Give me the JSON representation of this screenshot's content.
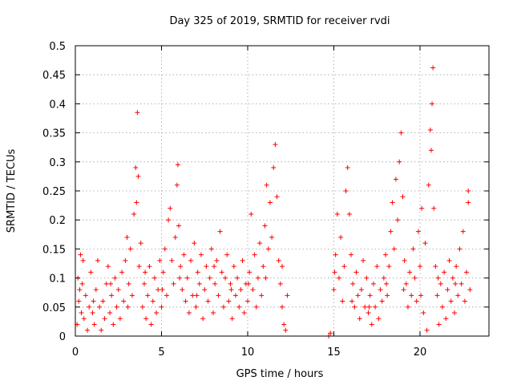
{
  "chart_data": {
    "type": "scatter",
    "title": "Day 325 of 2019, SRMTID for receiver rvdi",
    "xlabel": "GPS time / hours",
    "ylabel": "SRMTID / TECUs",
    "xlim": [
      0,
      24
    ],
    "ylim": [
      0,
      0.5
    ],
    "xticks": [
      0,
      5,
      10,
      15,
      20
    ],
    "xtick_labels": [
      "0",
      "5",
      "10",
      "15",
      "20"
    ],
    "yticks": [
      0,
      0.05,
      0.1,
      0.15,
      0.2,
      0.25,
      0.3,
      0.35,
      0.4,
      0.45,
      0.5
    ],
    "ytick_labels": [
      "0",
      "0.05",
      "0.1",
      "0.15",
      "0.2",
      "0.25",
      "0.3",
      "0.35",
      "0.4",
      "0.45",
      "0.5"
    ],
    "grid": true,
    "marker": "+",
    "colors": {
      "series": "#ff0000",
      "grid": "#a0a0a0",
      "axis": "#000000"
    },
    "series": [
      {
        "points": [
          [
            0.1,
            0.02
          ],
          [
            0.15,
            0.1
          ],
          [
            0.2,
            0.06
          ],
          [
            0.3,
            0.14
          ],
          [
            0.35,
            0.04
          ],
          [
            0.4,
            0.09
          ],
          [
            0.45,
            0.13
          ],
          [
            0.5,
            0.03
          ],
          [
            0.6,
            0.07
          ],
          [
            0.7,
            0.01
          ],
          [
            0.8,
            0.05
          ],
          [
            0.9,
            0.11
          ],
          [
            1.0,
            0.04
          ],
          [
            1.1,
            0.02
          ],
          [
            1.2,
            0.08
          ],
          [
            1.3,
            0.13
          ],
          [
            1.4,
            0.05
          ],
          [
            1.5,
            0.01
          ],
          [
            1.6,
            0.06
          ],
          [
            1.7,
            0.03
          ],
          [
            1.8,
            0.09
          ],
          [
            1.9,
            0.12
          ],
          [
            2.0,
            0.04
          ],
          [
            2.1,
            0.07
          ],
          [
            2.2,
            0.02
          ],
          [
            2.3,
            0.1
          ],
          [
            2.4,
            0.05
          ],
          [
            2.5,
            0.08
          ],
          [
            2.6,
            0.03
          ],
          [
            2.7,
            0.11
          ],
          [
            2.8,
            0.06
          ],
          [
            2.9,
            0.13
          ],
          [
            3.0,
            0.17
          ],
          [
            3.1,
            0.09
          ],
          [
            3.2,
            0.15
          ],
          [
            3.3,
            0.07
          ],
          [
            3.4,
            0.21
          ],
          [
            3.5,
            0.29
          ],
          [
            3.55,
            0.23
          ],
          [
            3.6,
            0.385
          ],
          [
            3.65,
            0.275
          ],
          [
            3.7,
            0.12
          ],
          [
            3.8,
            0.16
          ],
          [
            3.9,
            0.05
          ],
          [
            4.0,
            0.09
          ],
          [
            4.1,
            0.03
          ],
          [
            4.2,
            0.07
          ],
          [
            4.3,
            0.12
          ],
          [
            4.4,
            0.02
          ],
          [
            4.5,
            0.06
          ],
          [
            4.6,
            0.1
          ],
          [
            4.7,
            0.04
          ],
          [
            4.8,
            0.08
          ],
          [
            4.9,
            0.13
          ],
          [
            5.0,
            0.05
          ],
          [
            5.1,
            0.11
          ],
          [
            5.2,
            0.15
          ],
          [
            5.3,
            0.07
          ],
          [
            5.4,
            0.2
          ],
          [
            5.5,
            0.22
          ],
          [
            5.6,
            0.13
          ],
          [
            5.7,
            0.09
          ],
          [
            5.8,
            0.17
          ],
          [
            5.9,
            0.26
          ],
          [
            5.95,
            0.295
          ],
          [
            6.0,
            0.19
          ],
          [
            6.1,
            0.12
          ],
          [
            6.2,
            0.08
          ],
          [
            6.3,
            0.14
          ],
          [
            6.4,
            0.06
          ],
          [
            6.5,
            0.1
          ],
          [
            6.6,
            0.04
          ],
          [
            6.7,
            0.13
          ],
          [
            6.8,
            0.07
          ],
          [
            6.9,
            0.16
          ],
          [
            7.0,
            0.05
          ],
          [
            7.1,
            0.11
          ],
          [
            7.2,
            0.09
          ],
          [
            7.3,
            0.14
          ],
          [
            7.4,
            0.03
          ],
          [
            7.5,
            0.08
          ],
          [
            7.6,
            0.12
          ],
          [
            7.7,
            0.06
          ],
          [
            7.8,
            0.1
          ],
          [
            7.9,
            0.15
          ],
          [
            8.0,
            0.04
          ],
          [
            8.1,
            0.09
          ],
          [
            8.2,
            0.13
          ],
          [
            8.3,
            0.07
          ],
          [
            8.4,
            0.18
          ],
          [
            8.5,
            0.11
          ],
          [
            8.6,
            0.05
          ],
          [
            8.7,
            0.1
          ],
          [
            8.8,
            0.14
          ],
          [
            8.9,
            0.06
          ],
          [
            9.0,
            0.09
          ],
          [
            9.1,
            0.03
          ],
          [
            9.2,
            0.12
          ],
          [
            9.3,
            0.07
          ],
          [
            9.4,
            0.1
          ],
          [
            9.5,
            0.05
          ],
          [
            9.6,
            0.08
          ],
          [
            9.7,
            0.13
          ],
          [
            9.8,
            0.04
          ],
          [
            9.9,
            0.09
          ],
          [
            10.0,
            0.06
          ],
          [
            10.1,
            0.11
          ],
          [
            10.2,
            0.21
          ],
          [
            10.3,
            0.08
          ],
          [
            10.4,
            0.14
          ],
          [
            10.5,
            0.05
          ],
          [
            10.6,
            0.1
          ],
          [
            10.7,
            0.16
          ],
          [
            10.8,
            0.07
          ],
          [
            10.9,
            0.12
          ],
          [
            11.0,
            0.19
          ],
          [
            11.1,
            0.26
          ],
          [
            11.2,
            0.15
          ],
          [
            11.3,
            0.23
          ],
          [
            11.4,
            0.17
          ],
          [
            11.5,
            0.29
          ],
          [
            11.6,
            0.33
          ],
          [
            11.7,
            0.24
          ],
          [
            11.8,
            0.13
          ],
          [
            11.9,
            0.09
          ],
          [
            12.0,
            0.05
          ],
          [
            12.1,
            0.02
          ],
          [
            12.2,
            0.01
          ],
          [
            12.3,
            0.07
          ],
          [
            12.0,
            0.12
          ],
          [
            14.7,
            0.0
          ],
          [
            14.8,
            0.005
          ],
          [
            15.0,
            0.08
          ],
          [
            15.1,
            0.14
          ],
          [
            15.2,
            0.21
          ],
          [
            15.3,
            0.1
          ],
          [
            15.4,
            0.17
          ],
          [
            15.5,
            0.06
          ],
          [
            15.6,
            0.12
          ],
          [
            15.7,
            0.25
          ],
          [
            15.8,
            0.29
          ],
          [
            15.9,
            0.21
          ],
          [
            16.0,
            0.14
          ],
          [
            16.1,
            0.09
          ],
          [
            16.2,
            0.05
          ],
          [
            16.3,
            0.11
          ],
          [
            16.4,
            0.07
          ],
          [
            16.5,
            0.03
          ],
          [
            16.6,
            0.08
          ],
          [
            16.7,
            0.13
          ],
          [
            16.8,
            0.05
          ],
          [
            16.9,
            0.1
          ],
          [
            17.0,
            0.04
          ],
          [
            17.1,
            0.07
          ],
          [
            17.2,
            0.02
          ],
          [
            17.3,
            0.09
          ],
          [
            17.4,
            0.05
          ],
          [
            17.5,
            0.12
          ],
          [
            17.6,
            0.03
          ],
          [
            17.7,
            0.08
          ],
          [
            17.8,
            0.06
          ],
          [
            17.9,
            0.1
          ],
          [
            18.0,
            0.14
          ],
          [
            18.1,
            0.07
          ],
          [
            18.2,
            0.12
          ],
          [
            18.3,
            0.18
          ],
          [
            18.4,
            0.23
          ],
          [
            18.5,
            0.15
          ],
          [
            18.6,
            0.27
          ],
          [
            18.7,
            0.2
          ],
          [
            18.8,
            0.3
          ],
          [
            18.9,
            0.35
          ],
          [
            19.0,
            0.24
          ],
          [
            19.1,
            0.13
          ],
          [
            19.2,
            0.09
          ],
          [
            19.3,
            0.05
          ],
          [
            19.4,
            0.11
          ],
          [
            19.5,
            0.07
          ],
          [
            19.6,
            0.15
          ],
          [
            19.7,
            0.1
          ],
          [
            19.8,
            0.06
          ],
          [
            19.9,
            0.18
          ],
          [
            20.0,
            0.12
          ],
          [
            20.1,
            0.22
          ],
          [
            20.2,
            0.04
          ],
          [
            20.3,
            0.16
          ],
          [
            20.4,
            0.01
          ],
          [
            20.5,
            0.26
          ],
          [
            20.6,
            0.355
          ],
          [
            20.65,
            0.32
          ],
          [
            20.7,
            0.4
          ],
          [
            20.75,
            0.462
          ],
          [
            20.8,
            0.22
          ],
          [
            20.9,
            0.12
          ],
          [
            21.0,
            0.07
          ],
          [
            21.1,
            0.02
          ],
          [
            21.2,
            0.09
          ],
          [
            21.3,
            0.05
          ],
          [
            21.4,
            0.11
          ],
          [
            21.5,
            0.03
          ],
          [
            21.6,
            0.08
          ],
          [
            21.7,
            0.13
          ],
          [
            21.8,
            0.06
          ],
          [
            21.9,
            0.1
          ],
          [
            22.0,
            0.04
          ],
          [
            22.1,
            0.12
          ],
          [
            22.2,
            0.07
          ],
          [
            22.3,
            0.15
          ],
          [
            22.4,
            0.09
          ],
          [
            22.5,
            0.18
          ],
          [
            22.6,
            0.06
          ],
          [
            22.7,
            0.11
          ],
          [
            22.8,
            0.23
          ],
          [
            22.8,
            0.25
          ],
          [
            22.9,
            0.08
          ],
          [
            0.25,
            0.08
          ],
          [
            1.05,
            0.06
          ],
          [
            2.05,
            0.09
          ],
          [
            3.05,
            0.05
          ],
          [
            4.05,
            0.11
          ],
          [
            5.05,
            0.08
          ],
          [
            6.05,
            0.1
          ],
          [
            7.05,
            0.07
          ],
          [
            8.05,
            0.12
          ],
          [
            9.05,
            0.08
          ],
          [
            10.05,
            0.09
          ],
          [
            11.05,
            0.1
          ],
          [
            15.05,
            0.11
          ],
          [
            16.05,
            0.06
          ],
          [
            17.05,
            0.05
          ],
          [
            18.05,
            0.09
          ],
          [
            19.05,
            0.08
          ],
          [
            20.05,
            0.07
          ],
          [
            21.05,
            0.1
          ],
          [
            22.05,
            0.09
          ]
        ]
      }
    ]
  }
}
